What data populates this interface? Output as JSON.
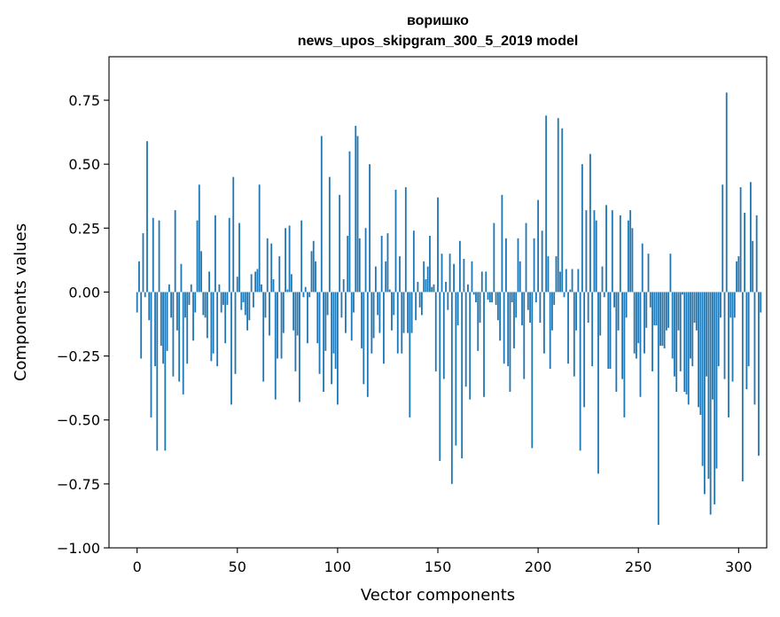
{
  "chart_data": {
    "type": "bar",
    "title_line1": "воришко",
    "title_line2": "news_upos_skipgram_300_5_2019 model",
    "xlabel": "Vector components",
    "ylabel": "Components values",
    "xlim": [
      -14,
      314
    ],
    "ylim": [
      -1.0,
      0.92
    ],
    "xticks": [
      0,
      50,
      100,
      150,
      200,
      250,
      300
    ],
    "xtick_labels": [
      "0",
      "50",
      "100",
      "150",
      "200",
      "250",
      "300"
    ],
    "yticks": [
      -1.0,
      -0.75,
      -0.5,
      -0.25,
      0.0,
      0.25,
      0.5,
      0.75
    ],
    "ytick_labels": [
      "−1.00",
      "−0.75",
      "−0.50",
      "−0.25",
      "0.00",
      "0.25",
      "0.50",
      "0.75"
    ],
    "bar_color": "#1f77b4",
    "values": [
      -0.08,
      0.12,
      -0.26,
      0.23,
      -0.02,
      0.59,
      -0.11,
      -0.49,
      0.29,
      -0.29,
      -0.62,
      0.28,
      -0.21,
      -0.28,
      -0.62,
      -0.23,
      0.03,
      -0.1,
      -0.33,
      0.32,
      -0.15,
      -0.35,
      0.11,
      -0.4,
      -0.1,
      -0.28,
      -0.05,
      0.03,
      -0.19,
      -0.08,
      0.28,
      0.42,
      0.16,
      -0.09,
      -0.1,
      -0.18,
      0.08,
      -0.27,
      -0.24,
      0.3,
      -0.29,
      0.03,
      -0.08,
      -0.05,
      -0.2,
      -0.05,
      0.29,
      -0.44,
      0.45,
      -0.32,
      0.06,
      0.27,
      -0.07,
      -0.04,
      -0.09,
      -0.15,
      -0.11,
      0.07,
      -0.06,
      0.08,
      0.09,
      0.42,
      0.03,
      -0.35,
      -0.1,
      0.21,
      -0.17,
      0.19,
      0.05,
      -0.42,
      -0.26,
      0.14,
      -0.26,
      -0.16,
      0.25,
      0.01,
      0.26,
      0.07,
      -0.15,
      -0.31,
      -0.17,
      -0.43,
      0.28,
      -0.02,
      0.02,
      -0.2,
      -0.02,
      0.16,
      0.2,
      0.12,
      -0.2,
      -0.32,
      0.61,
      -0.39,
      -0.23,
      -0.09,
      0.45,
      -0.36,
      -0.24,
      -0.3,
      -0.44,
      0.38,
      -0.1,
      0.05,
      -0.16,
      0.22,
      0.55,
      -0.19,
      -0.08,
      0.65,
      0.61,
      0.21,
      -0.22,
      -0.36,
      0.25,
      -0.41,
      0.5,
      -0.24,
      -0.18,
      0.1,
      -0.09,
      -0.16,
      0.22,
      -0.28,
      0.12,
      0.23,
      0.01,
      -0.15,
      -0.09,
      0.4,
      -0.24,
      0.14,
      -0.24,
      -0.16,
      0.41,
      -0.16,
      -0.49,
      -0.16,
      0.24,
      -0.11,
      0.04,
      -0.06,
      -0.09,
      0.12,
      0.05,
      0.1,
      0.22,
      0.02,
      0.03,
      -0.31,
      0.37,
      -0.66,
      0.15,
      -0.34,
      0.04,
      -0.07,
      0.15,
      -0.75,
      0.11,
      -0.6,
      -0.13,
      0.2,
      -0.65,
      0.13,
      -0.37,
      0.03,
      -0.42,
      0.12,
      -0.01,
      -0.04,
      -0.23,
      -0.12,
      0.08,
      -0.41,
      0.08,
      -0.03,
      -0.04,
      -0.04,
      0.27,
      -0.05,
      -0.11,
      -0.19,
      0.38,
      -0.28,
      0.21,
      -0.29,
      -0.39,
      -0.04,
      -0.22,
      -0.1,
      0.21,
      0.12,
      -0.13,
      -0.34,
      0.27,
      -0.07,
      -0.12,
      -0.61,
      0.21,
      -0.04,
      0.36,
      -0.12,
      0.24,
      -0.24,
      0.69,
      0.14,
      -0.3,
      -0.15,
      -0.05,
      0.14,
      0.68,
      0.08,
      0.64,
      -0.02,
      0.09,
      -0.28,
      0.01,
      0.09,
      -0.33,
      -0.15,
      0.09,
      -0.62,
      0.5,
      -0.45,
      0.32,
      -0.12,
      0.54,
      -0.29,
      0.32,
      0.28,
      -0.71,
      -0.17,
      0.1,
      -0.02,
      0.34,
      -0.3,
      -0.3,
      0.32,
      -0.06,
      -0.39,
      -0.15,
      0.3,
      -0.34,
      -0.49,
      -0.1,
      0.28,
      0.32,
      0.25,
      -0.24,
      -0.26,
      -0.2,
      -0.41,
      0.19,
      -0.24,
      -0.14,
      0.15,
      -0.06,
      -0.31,
      -0.13,
      -0.13,
      -0.91,
      -0.21,
      -0.21,
      -0.22,
      -0.15,
      -0.14,
      0.15,
      -0.26,
      -0.33,
      -0.39,
      -0.15,
      -0.31,
      -0.01,
      -0.39,
      -0.4,
      -0.44,
      -0.26,
      -0.29,
      -0.12,
      -0.15,
      -0.45,
      -0.48,
      -0.68,
      -0.79,
      -0.33,
      -0.73,
      -0.87,
      -0.42,
      -0.83,
      -0.69,
      -0.29,
      -0.1,
      0.42,
      -0.34,
      0.78,
      -0.49,
      -0.1,
      -0.35,
      -0.1,
      0.12,
      0.14,
      0.41,
      -0.74,
      0.31,
      -0.38,
      -0.29,
      0.43,
      0.2,
      -0.44,
      0.3,
      -0.64,
      -0.08
    ]
  }
}
